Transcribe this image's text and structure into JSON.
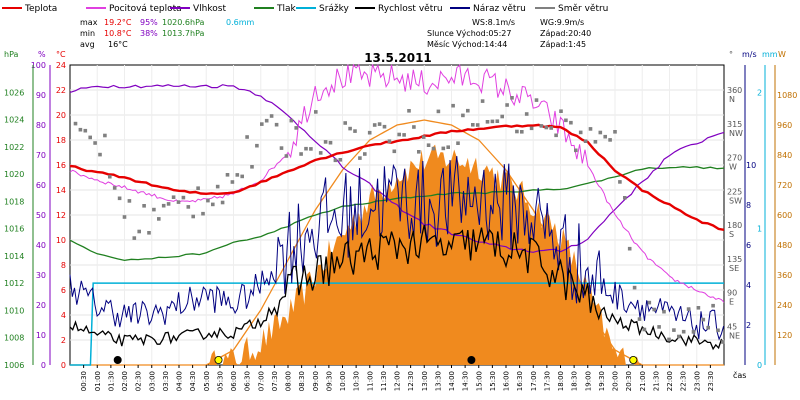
{
  "chart_data": {
    "type": "line",
    "title": "13.5.2011",
    "legend": [
      {
        "name": "Teplota",
        "color": "#e60000"
      },
      {
        "name": "Pocitová teplota",
        "color": "#e040e0"
      },
      {
        "name": "Vlhkost",
        "color": "#8000c0"
      },
      {
        "name": "Tlak",
        "color": "#208020"
      },
      {
        "name": "Srážky",
        "color": "#00b0d8"
      },
      {
        "name": "Rychlost větru",
        "color": "#000000"
      },
      {
        "name": "Náraz větru",
        "color": "#000080"
      },
      {
        "name": "Směr větru",
        "color": "#808080"
      }
    ],
    "stats": {
      "max": {
        "label": "max",
        "temp": "19.2°C",
        "hum": "95%",
        "press": "1020.6hPa",
        "rain": "0.6mm"
      },
      "min": {
        "label": "min",
        "temp": "10.8°C",
        "hum": "38%",
        "press": "1013.7hPa"
      },
      "avg": {
        "label": "avg",
        "temp": "16°C"
      }
    },
    "info": {
      "ws": "WS:8.1m/s",
      "wg": "WG:9.9m/s",
      "sun": "Slunce Východ:05:27",
      "sun_set": "Západ:20:40",
      "moon": "Měsíc Východ:14:44",
      "moon_set": "Západ:1:45"
    },
    "axes": {
      "x_label": "čas",
      "x_ticks": [
        "00:30",
        "01:00",
        "01:30",
        "02:00",
        "02:30",
        "03:00",
        "03:30",
        "04:00",
        "04:30",
        "05:00",
        "05:30",
        "06:00",
        "06:30",
        "07:00",
        "07:30",
        "08:00",
        "08:30",
        "09:00",
        "09:30",
        "10:00",
        "10:30",
        "11:00",
        "11:30",
        "12:00",
        "12:30",
        "13:00",
        "13:30",
        "14:00",
        "14:30",
        "15:00",
        "15:30",
        "16:00",
        "16:30",
        "17:00",
        "17:30",
        "18:00",
        "18:30",
        "19:00",
        "19:30",
        "20:00",
        "20:30",
        "21:00",
        "21:30",
        "22:00",
        "22:30",
        "23:00",
        "23:30"
      ],
      "hpa": {
        "unit": "hPa",
        "range": [
          1006,
          1028
        ],
        "ticks": [
          "1006",
          "1008",
          "1010",
          "1012",
          "1014",
          "1016",
          "1018",
          "1020",
          "1022",
          "1024",
          "1026"
        ]
      },
      "humidity": {
        "unit": "%",
        "range": [
          0,
          100
        ],
        "ticks": [
          "0",
          "10",
          "20",
          "30",
          "40",
          "50",
          "60",
          "70",
          "80",
          "90",
          "100"
        ]
      },
      "temperature": {
        "unit": "°C",
        "range": [
          0,
          24
        ],
        "ticks": [
          "0",
          "2",
          "4",
          "6",
          "8",
          "10",
          "12",
          "14",
          "16",
          "18",
          "20",
          "22",
          "24"
        ]
      },
      "direction": {
        "unit": "°",
        "labels": [
          {
            "deg": "360",
            "dir": "N",
            "v": 360
          },
          {
            "deg": "315",
            "dir": "NW",
            "v": 315
          },
          {
            "deg": "270",
            "dir": "W",
            "v": 270
          },
          {
            "deg": "225",
            "dir": "SW",
            "v": 225
          },
          {
            "deg": "180",
            "dir": "S",
            "v": 180
          },
          {
            "deg": "135",
            "dir": "SE",
            "v": 135
          },
          {
            "deg": "90",
            "dir": "E",
            "v": 90
          },
          {
            "deg": "45",
            "dir": "NE",
            "v": 45
          }
        ]
      },
      "wind": {
        "unit": "m/s",
        "range": [
          0,
          10
        ],
        "ticks": [
          "2",
          "4",
          "6",
          "8",
          "10"
        ]
      },
      "rain": {
        "unit": "mm",
        "ticks": [
          "0",
          "1",
          "2"
        ]
      },
      "radiation": {
        "unit": "W",
        "range": [
          0,
          1200
        ],
        "ticks": [
          "120",
          "240",
          "360",
          "480",
          "600",
          "720",
          "840",
          "960",
          "1080"
        ]
      }
    },
    "series_hourly": {
      "hours": [
        0,
        1,
        2,
        3,
        4,
        5,
        6,
        7,
        8,
        9,
        10,
        11,
        12,
        13,
        14,
        15,
        16,
        17,
        18,
        19,
        20,
        21,
        22,
        23,
        24
      ],
      "temperature": [
        15.9,
        15.4,
        15.0,
        14.4,
        13.9,
        13.7,
        13.8,
        14.6,
        15.5,
        16.4,
        17.0,
        17.6,
        17.9,
        18.3,
        18.7,
        18.9,
        19.1,
        19.2,
        19.0,
        17.8,
        15.6,
        14.0,
        12.8,
        11.6,
        10.8
      ],
      "feels_like": [
        15.5,
        14.8,
        14.2,
        13.6,
        13.0,
        13.2,
        13.7,
        14.8,
        17.0,
        22.0,
        23.0,
        23.0,
        23.0,
        22.5,
        23.0,
        23.0,
        22.0,
        21.0,
        19.0,
        16.0,
        12.0,
        9.0,
        7.0,
        6.0,
        5.0
      ],
      "humidity": [
        91,
        93,
        93,
        93,
        93,
        93,
        93,
        90,
        83,
        75,
        66,
        60,
        53,
        47,
        44,
        41,
        39,
        38,
        38,
        42,
        52,
        61,
        70,
        74,
        78
      ],
      "pressure": [
        1015.1,
        1014.2,
        1013.7,
        1013.8,
        1014.0,
        1014.2,
        1015.0,
        1015.4,
        1016.2,
        1017.0,
        1017.6,
        1017.9,
        1018.2,
        1018.4,
        1018.6,
        1018.6,
        1018.7,
        1018.8,
        1018.9,
        1019.3,
        1019.8,
        1020.4,
        1020.5,
        1020.5,
        1020.4
      ],
      "wind_speed": [
        2.0,
        1.5,
        1.2,
        1.3,
        1.4,
        1.6,
        1.6,
        2.2,
        3.8,
        4.6,
        5.2,
        5.6,
        6.0,
        6.0,
        5.8,
        6.2,
        5.8,
        5.4,
        4.4,
        3.2,
        2.2,
        1.8,
        1.4,
        1.2,
        1.0
      ],
      "wind_gust": [
        4.0,
        3.0,
        2.5,
        2.5,
        3.0,
        3.5,
        3.0,
        4.0,
        6.0,
        7.0,
        7.5,
        8.0,
        8.5,
        8.0,
        8.2,
        8.5,
        8.0,
        7.5,
        6.0,
        4.5,
        3.5,
        3.0,
        2.5,
        2.0,
        2.0
      ],
      "wind_direction": [
        295,
        310,
        200,
        190,
        210,
        230,
        250,
        300,
        305,
        310,
        300,
        305,
        310,
        312,
        320,
        330,
        335,
        330,
        320,
        300,
        290,
        60,
        60,
        60,
        60
      ],
      "solar_radiation": [
        0,
        0,
        0,
        0,
        0,
        0,
        20,
        90,
        200,
        360,
        520,
        660,
        760,
        820,
        830,
        800,
        740,
        640,
        520,
        300,
        40,
        0,
        0,
        0,
        0
      ],
      "solar_theoretical": [
        0,
        0,
        0,
        0,
        0,
        0,
        60,
        220,
        420,
        620,
        780,
        900,
        960,
        980,
        960,
        900,
        780,
        620,
        420,
        220,
        60,
        0,
        0,
        0,
        0
      ],
      "rain_cumulative": [
        0,
        0.6,
        0.6,
        0.6,
        0.6,
        0.6,
        0.6,
        0.6,
        0.6,
        0.6,
        0.6,
        0.6,
        0.6,
        0.6,
        0.6,
        0.6,
        0.6,
        0.6,
        0.6,
        0.6,
        0.6,
        0.6,
        0.6,
        0.6,
        0.6
      ]
    },
    "events": [
      {
        "type": "moonset",
        "hour": 1.75
      },
      {
        "type": "sunrise",
        "hour": 5.45
      },
      {
        "type": "moonrise",
        "hour": 14.73
      },
      {
        "type": "sunset",
        "hour": 20.67
      }
    ]
  }
}
